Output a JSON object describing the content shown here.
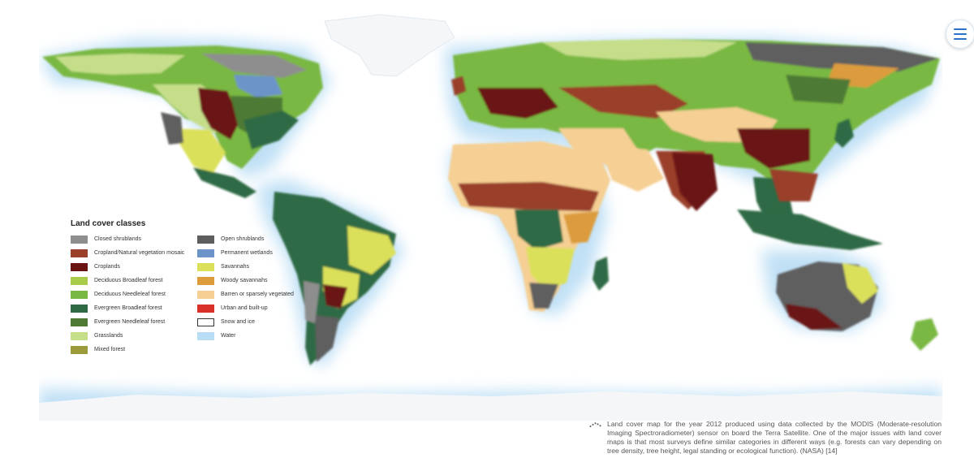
{
  "map": {
    "colors": {
      "ocean": "#ffffff",
      "water_glow": "#b9ddf4",
      "snow": "#f4f6f8"
    }
  },
  "legend": {
    "title": "Land cover classes",
    "columns": [
      [
        {
          "label": "Closed shrublands",
          "color": "#8e8e8e"
        },
        {
          "label": "Cropland/Natural vegetation mosaic",
          "color": "#9a3f2b"
        },
        {
          "label": "Croplands",
          "color": "#6b1212"
        },
        {
          "label": "Deciduous Broadleaf forest",
          "color": "#a8cc4a"
        },
        {
          "label": "Deciduous Needleleaf forest",
          "color": "#79b843"
        },
        {
          "label": "Evergreen Broadleaf forest",
          "color": "#2e6b45"
        },
        {
          "label": "Evergreen Needleleaf forest",
          "color": "#4e7a34"
        },
        {
          "label": "Grasslands",
          "color": "#c6de8a"
        },
        {
          "label": "Mixed forest",
          "color": "#9c9b3c"
        }
      ],
      [
        {
          "label": "Open shrublands",
          "color": "#5e5e5e"
        },
        {
          "label": "Permanent wetlands",
          "color": "#6d94c8"
        },
        {
          "label": "Savannahs",
          "color": "#dbe05a"
        },
        {
          "label": "Woody savannahs",
          "color": "#dc9c3c"
        },
        {
          "label": "Barren or sparsely vegetated",
          "color": "#f5cf93"
        },
        {
          "label": "Urban and built-up",
          "color": "#d9302a"
        },
        {
          "label": "Snow and ice",
          "color": "#ffffff",
          "outline": true
        },
        {
          "label": "Water",
          "color": "#b9ddf4"
        }
      ]
    ]
  },
  "caption": {
    "text": "Land cover map for the year 2012 produced using data collected by the MODIS (Moderate-resolution Imaging Spectroradiometer) sensor on board the Terra Satellite. One of the major issues with land cover maps is that most surveys define similar categories in different ways (e.g. forests can vary depending on tree density, tree height, legal standing or ecological function). (NASA) [14]"
  }
}
